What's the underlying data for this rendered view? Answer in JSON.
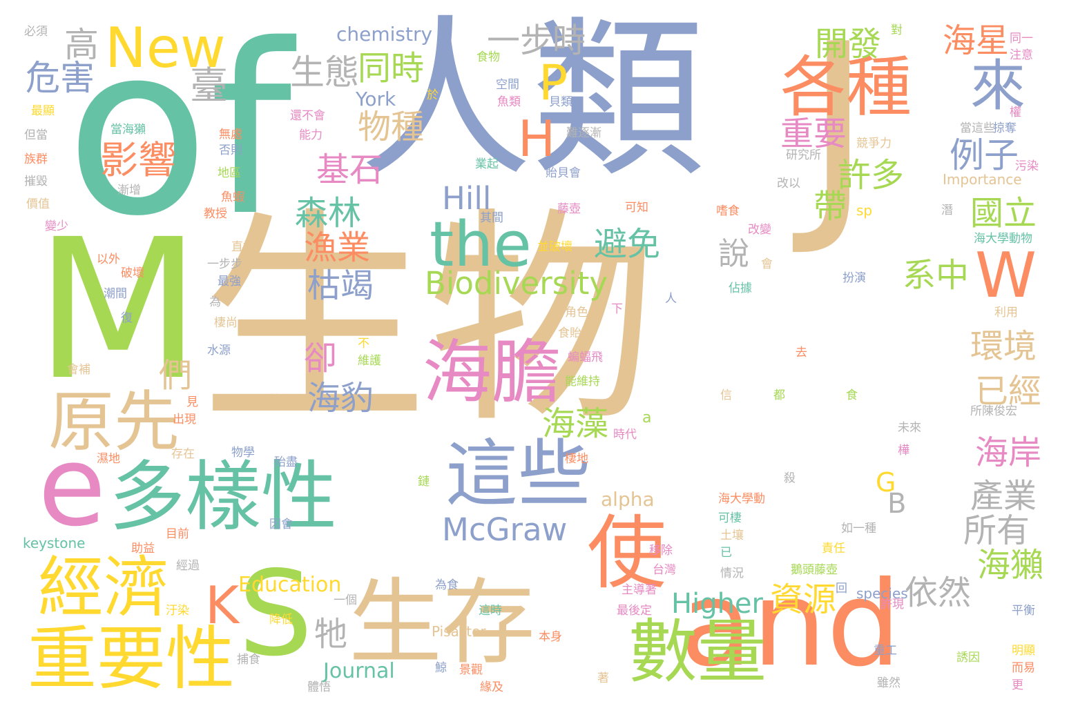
{
  "word_cloud": {
    "words": [
      {
        "id": "w-of",
        "text": "of",
        "color": "#66c2a5"
      },
      {
        "id": "w-renlei",
        "text": "人類",
        "color": "#8da0cb"
      },
      {
        "id": "w-shengwu",
        "text": "生物",
        "color": "#e5c494"
      },
      {
        "id": "w-m",
        "text": "M",
        "color": "#a6d854"
      },
      {
        "id": "w-e",
        "text": "e",
        "color": "#e78ac3"
      },
      {
        "id": "w-s",
        "text": "S",
        "color": "#a6d854"
      },
      {
        "id": "w-and",
        "text": "and",
        "color": "#fc8d62"
      },
      {
        "id": "w-j",
        "text": "J",
        "color": "#e5c494"
      },
      {
        "id": "w-new",
        "text": "New",
        "color": "#ffd92f"
      },
      {
        "id": "w-the",
        "text": "the",
        "color": "#66c2a5"
      },
      {
        "id": "w-haidan",
        "text": "海膽",
        "color": "#e78ac3"
      },
      {
        "id": "w-zhexie",
        "text": "這些",
        "color": "#8da0cb"
      },
      {
        "id": "w-duoyangxing",
        "text": "多樣性",
        "color": "#66c2a5"
      },
      {
        "id": "w-yuanxian",
        "text": "原先",
        "color": "#e5c494"
      },
      {
        "id": "w-jingji",
        "text": "經濟",
        "color": "#ffd92f"
      },
      {
        "id": "w-zhongyaoxing",
        "text": "重要性",
        "color": "#ffd92f"
      },
      {
        "id": "w-shengcun",
        "text": "生存",
        "color": "#e5c494"
      },
      {
        "id": "w-shuliang",
        "text": "數量",
        "color": "#a6d854"
      },
      {
        "id": "w-gezhong",
        "text": "各種",
        "color": "#fc8d62"
      },
      {
        "id": "w-shi",
        "text": "使",
        "color": "#fc8d62"
      },
      {
        "id": "w-lai",
        "text": "來",
        "color": "#8da0cb"
      },
      {
        "id": "w-w",
        "text": "W",
        "color": "#fc8d62"
      },
      {
        "id": "w-k",
        "text": "K",
        "color": "#fc8d62"
      },
      {
        "id": "w-p",
        "text": "P",
        "color": "#ffd92f"
      },
      {
        "id": "w-h",
        "text": "H",
        "color": "#fc8d62"
      },
      {
        "id": "w-yingxiang",
        "text": "影響",
        "color": "#fc8d62"
      },
      {
        "id": "w-biodiversity",
        "text": "Biodiversity",
        "color": "#a6d854"
      },
      {
        "id": "w-mcgraw",
        "text": "McGraw",
        "color": "#8da0cb"
      },
      {
        "id": "w-hill",
        "text": "Hill",
        "color": "#8da0cb"
      },
      {
        "id": "w-higher",
        "text": "Higher",
        "color": "#66c2a5"
      },
      {
        "id": "w-education",
        "text": "Education",
        "color": "#ffd92f"
      },
      {
        "id": "w-journal",
        "text": "Journal",
        "color": "#66c2a5"
      },
      {
        "id": "w-chemistry",
        "text": "chemistry",
        "color": "#8da0cb"
      },
      {
        "id": "w-york",
        "text": "York",
        "color": "#8da0cb"
      },
      {
        "id": "w-alpha",
        "text": "alpha",
        "color": "#e5c494"
      },
      {
        "id": "w-keystone",
        "text": "keystone",
        "color": "#66c2a5"
      },
      {
        "id": "w-species",
        "text": "species",
        "color": "#8da0cb"
      },
      {
        "id": "w-pisaster",
        "text": "Pisaster",
        "color": "#e5c494"
      },
      {
        "id": "w-importance",
        "text": "Importance",
        "color": "#e5c494"
      },
      {
        "id": "w-sp",
        "text": "sp",
        "color": "#ffd92f"
      },
      {
        "id": "w-a",
        "text": "a",
        "color": "#a6d854"
      },
      {
        "id": "w-b",
        "text": "B",
        "color": "#b3b3b3"
      },
      {
        "id": "w-g",
        "text": "G",
        "color": "#ffd92f"
      },
      {
        "id": "w-yibu",
        "text": "一步",
        "color": "#b3b3b3"
      },
      {
        "id": "w-shi2",
        "text": "時",
        "color": "#b3b3b3"
      },
      {
        "id": "w-kaifa",
        "text": "開發",
        "color": "#a6d854"
      },
      {
        "id": "w-haixing",
        "text": "海星",
        "color": "#fc8d62"
      },
      {
        "id": "w-gao",
        "text": "高",
        "color": "#b3b3b3"
      },
      {
        "id": "w-weihai",
        "text": "危害",
        "color": "#8da0cb"
      },
      {
        "id": "w-tai",
        "text": "臺",
        "color": "#b3b3b3"
      },
      {
        "id": "w-shengtai",
        "text": "生態",
        "color": "#b3b3b3"
      },
      {
        "id": "w-tongshi",
        "text": "同時",
        "color": "#a6d854"
      },
      {
        "id": "w-wuzhong",
        "text": "物種",
        "color": "#e5c494"
      },
      {
        "id": "w-jishi",
        "text": "基石",
        "color": "#e78ac3"
      },
      {
        "id": "w-senlin",
        "text": "森林",
        "color": "#66c2a5"
      },
      {
        "id": "w-yuye",
        "text": "漁業",
        "color": "#fc8d62"
      },
      {
        "id": "w-kujie",
        "text": "枯竭",
        "color": "#8da0cb"
      },
      {
        "id": "w-bimian",
        "text": "避免",
        "color": "#66c2a5"
      },
      {
        "id": "w-shuo",
        "text": "說",
        "color": "#b3b3b3"
      },
      {
        "id": "w-zhongyao",
        "text": "重要",
        "color": "#e78ac3"
      },
      {
        "id": "w-lizi",
        "text": "例子",
        "color": "#8da0cb"
      },
      {
        "id": "w-xuduo",
        "text": "許多",
        "color": "#a6d854"
      },
      {
        "id": "w-dai",
        "text": "帶",
        "color": "#a6d854"
      },
      {
        "id": "w-guoli",
        "text": "國立",
        "color": "#a6d854"
      },
      {
        "id": "w-xizhong",
        "text": "系中",
        "color": "#a6d854"
      },
      {
        "id": "w-huanjing",
        "text": "環境",
        "color": "#e5c494"
      },
      {
        "id": "w-yijing",
        "text": "已經",
        "color": "#e5c494"
      },
      {
        "id": "w-haian",
        "text": "海岸",
        "color": "#e78ac3"
      },
      {
        "id": "w-chanye",
        "text": "產業",
        "color": "#b3b3b3"
      },
      {
        "id": "w-suoyou",
        "text": "所有",
        "color": "#b3b3b3"
      },
      {
        "id": "w-haita",
        "text": "海獺",
        "color": "#a6d854"
      },
      {
        "id": "w-yiran",
        "text": "依然",
        "color": "#b3b3b3"
      },
      {
        "id": "w-ziyuan",
        "text": "資源",
        "color": "#ffd92f"
      },
      {
        "id": "w-haizao",
        "text": "海藻",
        "color": "#a6d854"
      },
      {
        "id": "w-haibao",
        "text": "海豹",
        "color": "#8da0cb"
      },
      {
        "id": "w-que",
        "text": "卻",
        "color": "#e78ac3"
      },
      {
        "id": "w-men",
        "text": "們",
        "color": "#e5c494"
      },
      {
        "id": "w-mu",
        "text": "牠",
        "color": "#b3b3b3"
      },
      {
        "id": "w-bixu",
        "text": "必須",
        "color": "#b3b3b3"
      },
      {
        "id": "w-dui",
        "text": "對",
        "color": "#a6d854"
      },
      {
        "id": "w-tongyi",
        "text": "同一",
        "color": "#e78ac3"
      },
      {
        "id": "w-zhuyi",
        "text": "注意",
        "color": "#e78ac3"
      },
      {
        "id": "w-shiwu",
        "text": "食物",
        "color": "#a6d854"
      },
      {
        "id": "w-kongjian",
        "text": "空間",
        "color": "#8da0cb"
      },
      {
        "id": "w-yulei",
        "text": "魚類",
        "color": "#e78ac3"
      },
      {
        "id": "w-beilei",
        "text": "貝類",
        "color": "#8da0cb"
      },
      {
        "id": "w-yu",
        "text": "於",
        "color": "#ffd92f"
      },
      {
        "id": "w-zuixian",
        "text": "最顯",
        "color": "#ffd92f"
      },
      {
        "id": "w-danghaita",
        "text": "當海獺",
        "color": "#66c2a5"
      },
      {
        "id": "w-danang",
        "text": "但當",
        "color": "#b3b3b3"
      },
      {
        "id": "w-wuchu",
        "text": "無處",
        "color": "#fc8d62"
      },
      {
        "id": "w-foure",
        "text": "否則",
        "color": "#8da0cb"
      },
      {
        "id": "w-zuqun",
        "text": "族群",
        "color": "#fc8d62"
      },
      {
        "id": "w-diqu",
        "text": "地區",
        "color": "#a6d854"
      },
      {
        "id": "w-cuihui",
        "text": "摧毀",
        "color": "#b3b3b3"
      },
      {
        "id": "w-jianzeng",
        "text": "漸增",
        "color": "#b3b3b3"
      },
      {
        "id": "w-jiazhi",
        "text": "價值",
        "color": "#e5c494"
      },
      {
        "id": "w-yuxia",
        "text": "魚蝦",
        "color": "#fc8d62"
      },
      {
        "id": "w-jiaoshou",
        "text": "教授",
        "color": "#fc8d62"
      },
      {
        "id": "w-bianshao",
        "text": "變少",
        "color": "#e78ac3"
      },
      {
        "id": "w-huanbuhui",
        "text": "還不會",
        "color": "#e78ac3"
      },
      {
        "id": "w-nengli",
        "text": "能力",
        "color": "#e78ac3"
      },
      {
        "id": "w-nanzhujian",
        "text": "難逐漸",
        "color": "#b3b3b3"
      },
      {
        "id": "w-yeqi",
        "text": "業起",
        "color": "#66c2a5"
      },
      {
        "id": "w-taibeihui",
        "text": "貽貝會",
        "color": "#8da0cb"
      },
      {
        "id": "w-jingzhengli",
        "text": "競爭力",
        "color": "#e5c494"
      },
      {
        "id": "w-yanjiusuo",
        "text": "研究所",
        "color": "#b3b3b3"
      },
      {
        "id": "w-dangzhexie",
        "text": "當這些",
        "color": "#b3b3b3"
      },
      {
        "id": "w-lueduo",
        "text": "掠奪",
        "color": "#8da0cb"
      },
      {
        "id": "w-wuran",
        "text": "污染",
        "color": "#e78ac3"
      },
      {
        "id": "w-quan",
        "text": "權",
        "color": "#e78ac3"
      },
      {
        "id": "w-gaiyi",
        "text": "改以",
        "color": "#b3b3b3"
      },
      {
        "id": "w-kezhi",
        "text": "可知",
        "color": "#fc8d62"
      },
      {
        "id": "w-qijian",
        "text": "其間",
        "color": "#8da0cb"
      },
      {
        "id": "w-shishi",
        "text": "嗜食",
        "color": "#fc8d62"
      },
      {
        "id": "w-tenghu",
        "text": "藤壺",
        "color": "#e78ac3"
      },
      {
        "id": "w-gaibian",
        "text": "改變",
        "color": "#e78ac3"
      },
      {
        "id": "w-qian",
        "text": "潛",
        "color": "#b3b3b3"
      },
      {
        "id": "w-zhijie",
        "text": "直接",
        "color": "#e5c494"
      },
      {
        "id": "w-bingpohuai",
        "text": "並破壞",
        "color": "#ffd92f"
      },
      {
        "id": "w-haidaxue",
        "text": "海大學動物",
        "color": "#66c2a5"
      },
      {
        "id": "w-yiwai",
        "text": "以外",
        "color": "#fc8d62"
      },
      {
        "id": "w-yibubu",
        "text": "一步步",
        "color": "#b3b3b3"
      },
      {
        "id": "w-pohuai",
        "text": "破壞",
        "color": "#fc8d62"
      },
      {
        "id": "w-zuiqiang",
        "text": "最強",
        "color": "#8da0cb"
      },
      {
        "id": "w-hui",
        "text": "會",
        "color": "#e5c494"
      },
      {
        "id": "w-banyan",
        "text": "扮演",
        "color": "#8da0cb"
      },
      {
        "id": "w-gaju",
        "text": "佔據",
        "color": "#66c2a5"
      },
      {
        "id": "w-chaojian",
        "text": "潮間",
        "color": "#8da0cb"
      },
      {
        "id": "w-wei",
        "text": "為",
        "color": "#b3b3b3"
      },
      {
        "id": "w-ren",
        "text": "人",
        "color": "#8da0cb"
      },
      {
        "id": "w-qishang",
        "text": "棲尚",
        "color": "#e5c494"
      },
      {
        "id": "w-jiaose",
        "text": "角色",
        "color": "#e5c494"
      },
      {
        "id": "w-xia",
        "text": "下",
        "color": "#e78ac3"
      },
      {
        "id": "w-liyong",
        "text": "利用",
        "color": "#e5c494"
      },
      {
        "id": "w-fu",
        "text": "復",
        "color": "#8da0cb"
      },
      {
        "id": "w-shiyibei",
        "text": "食貽貝",
        "color": "#e5c494"
      },
      {
        "id": "w-bu",
        "text": "不",
        "color": "#ffd92f"
      },
      {
        "id": "w-shuiyuan",
        "text": "水源",
        "color": "#8da0cb"
      },
      {
        "id": "w-weihu",
        "text": "維護",
        "color": "#a6d854"
      },
      {
        "id": "w-bianfu",
        "text": "蝙蝠飛",
        "color": "#e78ac3"
      },
      {
        "id": "w-qu",
        "text": "去",
        "color": "#fc8d62"
      },
      {
        "id": "w-huibu",
        "text": "會補",
        "color": "#e5c494"
      },
      {
        "id": "w-nengweichi",
        "text": "能維持",
        "color": "#a6d854"
      },
      {
        "id": "w-jian",
        "text": "見",
        "color": "#fc8d62"
      },
      {
        "id": "w-nanyi",
        "text": "難以",
        "color": "#e5c494"
      },
      {
        "id": "w-xin",
        "text": "信",
        "color": "#e5c494"
      },
      {
        "id": "w-dou",
        "text": "都",
        "color": "#a6d854"
      },
      {
        "id": "w-shi3",
        "text": "食",
        "color": "#a6d854"
      },
      {
        "id": "w-chuxian",
        "text": "出現",
        "color": "#fc8d62"
      },
      {
        "id": "w-shidai",
        "text": "時代",
        "color": "#e78ac3"
      },
      {
        "id": "w-suochenjun",
        "text": "所陳俊宏",
        "color": "#b3b3b3"
      },
      {
        "id": "w-cunzai",
        "text": "存在",
        "color": "#e5c494"
      },
      {
        "id": "w-wuxue",
        "text": "物學",
        "color": "#8da0cb"
      },
      {
        "id": "w-qidi",
        "text": "棲地",
        "color": "#fc8d62"
      },
      {
        "id": "w-weilai",
        "text": "未來",
        "color": "#b3b3b3"
      },
      {
        "id": "w-shidi",
        "text": "濕地",
        "color": "#fc8d62"
      },
      {
        "id": "w-daishu",
        "text": "殆盡",
        "color": "#8da0cb"
      },
      {
        "id": "w-hua",
        "text": "樺",
        "color": "#e78ac3"
      },
      {
        "id": "w-lian",
        "text": "鏈",
        "color": "#a6d854"
      },
      {
        "id": "w-sha",
        "text": "殺",
        "color": "#b3b3b3"
      },
      {
        "id": "w-haidaxuedong",
        "text": "海大學動",
        "color": "#fc8d62"
      },
      {
        "id": "w-keqi",
        "text": "可棲",
        "color": "#66c2a5"
      },
      {
        "id": "w-turang",
        "text": "土壤",
        "color": "#e5c494"
      },
      {
        "id": "w-ruyizhong",
        "text": "如一種",
        "color": "#b3b3b3"
      },
      {
        "id": "w-yinhui",
        "text": "因會",
        "color": "#8da0cb"
      },
      {
        "id": "w-muqian",
        "text": "目前",
        "color": "#fc8d62"
      },
      {
        "id": "w-zhuyi2",
        "text": "助益",
        "color": "#fc8d62"
      },
      {
        "id": "w-yichu",
        "text": "移除",
        "color": "#e78ac3"
      },
      {
        "id": "w-yi",
        "text": "已",
        "color": "#66c2a5"
      },
      {
        "id": "w-zeren",
        "text": "責任",
        "color": "#ffd92f"
      },
      {
        "id": "w-jingguo",
        "text": "經過",
        "color": "#b3b3b3"
      },
      {
        "id": "w-taiwan",
        "text": "台灣",
        "color": "#e78ac3"
      },
      {
        "id": "w-qingkuang",
        "text": "情況",
        "color": "#b3b3b3"
      },
      {
        "id": "w-etouteng",
        "text": "鵝頭藤壺",
        "color": "#a6d854"
      },
      {
        "id": "w-weishi",
        "text": "為食",
        "color": "#8da0cb"
      },
      {
        "id": "w-zhudaozhe",
        "text": "主導著",
        "color": "#e78ac3"
      },
      {
        "id": "w-hui2",
        "text": "回",
        "color": "#8da0cb"
      },
      {
        "id": "w-xuxian",
        "text": "許現",
        "color": "#e78ac3"
      },
      {
        "id": "w-yige",
        "text": "一個",
        "color": "#b3b3b3"
      },
      {
        "id": "w-zheshi",
        "text": "這時",
        "color": "#66c2a5"
      },
      {
        "id": "w-zuihouding",
        "text": "最後定",
        "color": "#e78ac3"
      },
      {
        "id": "w-pingheng",
        "text": "平衡",
        "color": "#8da0cb"
      },
      {
        "id": "w-wuran2",
        "text": "汙染",
        "color": "#ffd92f"
      },
      {
        "id": "w-jiangdi",
        "text": "降低",
        "color": "#ffd92f"
      },
      {
        "id": "w-benshen",
        "text": "本身",
        "color": "#fc8d62"
      },
      {
        "id": "w-zhonggong",
        "text": "重工",
        "color": "#8da0cb"
      },
      {
        "id": "w-mingxian",
        "text": "明顯",
        "color": "#ffd92f"
      },
      {
        "id": "w-buyu",
        "text": "捕食",
        "color": "#b3b3b3"
      },
      {
        "id": "w-jing",
        "text": "鯨",
        "color": "#8da0cb"
      },
      {
        "id": "w-jingguan",
        "text": "景觀",
        "color": "#fc8d62"
      },
      {
        "id": "w-youyin",
        "text": "誘因",
        "color": "#a6d854"
      },
      {
        "id": "w-eryi",
        "text": "而易",
        "color": "#fc8d62"
      },
      {
        "id": "w-zhe",
        "text": "著",
        "color": "#e5c494"
      },
      {
        "id": "w-tiwu",
        "text": "體悟",
        "color": "#b3b3b3"
      },
      {
        "id": "w-yuanji",
        "text": "緣及",
        "color": "#fc8d62"
      },
      {
        "id": "w-suiran",
        "text": "雖然",
        "color": "#b3b3b3"
      },
      {
        "id": "w-geng",
        "text": "更",
        "color": "#e78ac3"
      }
    ]
  }
}
